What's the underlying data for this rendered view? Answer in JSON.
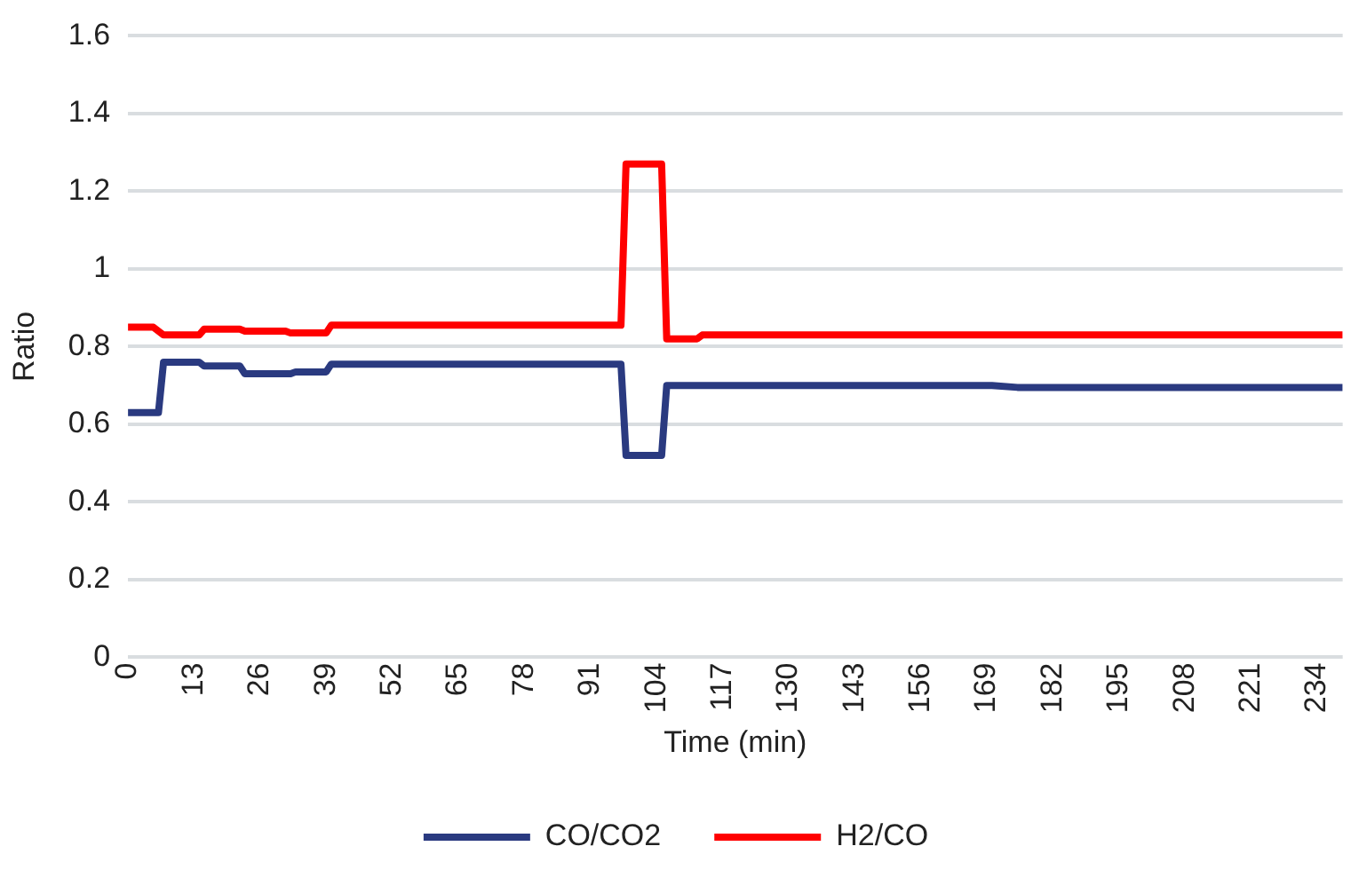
{
  "chart_data": {
    "type": "line",
    "xlabel": "Time (min)",
    "ylabel": "Ratio",
    "xlim": [
      0,
      239
    ],
    "xticks": [
      0,
      13,
      26,
      39,
      52,
      65,
      78,
      91,
      104,
      117,
      130,
      143,
      156,
      169,
      182,
      195,
      208,
      221,
      234
    ],
    "ylim": [
      0,
      1.6
    ],
    "yticks": [
      0,
      0.2,
      0.4,
      0.6,
      0.8,
      1,
      1.2,
      1.4,
      1.6
    ],
    "grid": "y",
    "legend": "bottom",
    "marker": "none",
    "line_style": "solid",
    "series": [
      {
        "name": "CO/CO2",
        "color": "#2a3a80",
        "x": [
          0,
          6,
          7,
          14,
          15,
          22,
          23,
          32,
          33,
          39,
          40,
          97,
          98,
          105,
          106,
          170,
          175,
          239
        ],
        "values": [
          0.63,
          0.63,
          0.76,
          0.76,
          0.75,
          0.75,
          0.73,
          0.73,
          0.735,
          0.735,
          0.755,
          0.755,
          0.52,
          0.52,
          0.7,
          0.7,
          0.695,
          0.695
        ]
      },
      {
        "name": "H2/CO",
        "color": "#ff0000",
        "x": [
          0,
          5,
          7,
          14,
          15,
          22,
          23,
          31,
          32,
          39,
          40,
          97,
          98,
          105,
          106,
          112,
          113,
          239
        ],
        "values": [
          0.85,
          0.85,
          0.83,
          0.83,
          0.845,
          0.845,
          0.84,
          0.84,
          0.835,
          0.835,
          0.855,
          0.855,
          1.27,
          1.27,
          0.82,
          0.82,
          0.83,
          0.83
        ]
      }
    ]
  }
}
